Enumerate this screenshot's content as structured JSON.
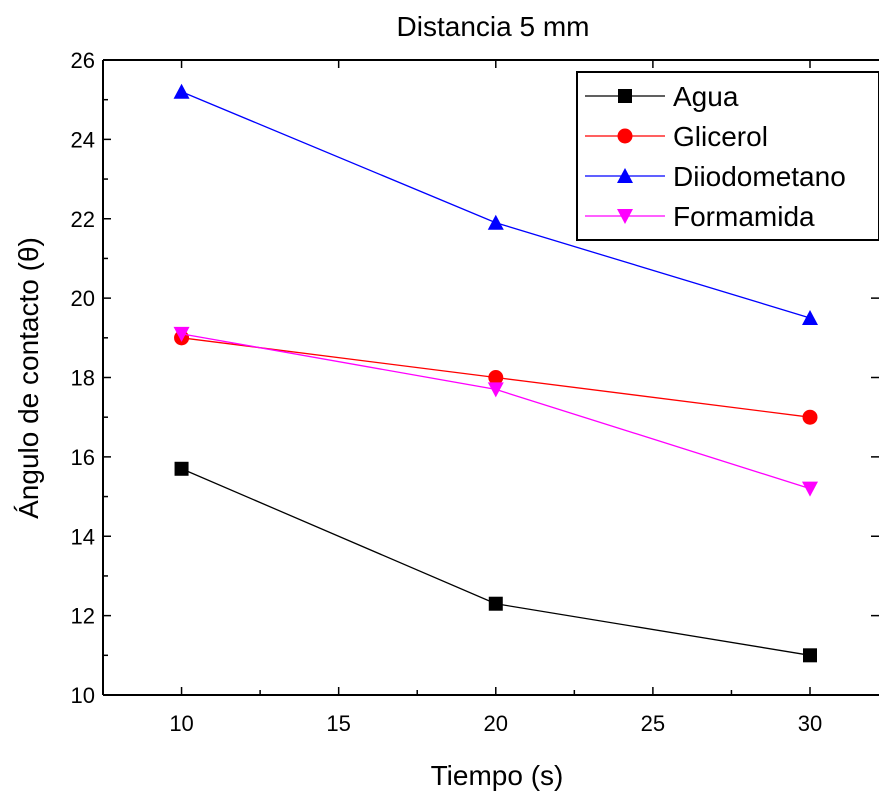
{
  "chart_data": {
    "type": "line",
    "title": "Distancia 5 mm",
    "xlabel": "Tiempo (s)",
    "ylabel": "Ángulo de contacto (θ)",
    "x": [
      10,
      20,
      30
    ],
    "xlim": [
      7.5,
      30
    ],
    "ylim": [
      10,
      26
    ],
    "xticks": [
      10,
      15,
      20,
      25,
      30
    ],
    "yticks": [
      10,
      12,
      14,
      16,
      18,
      20,
      22,
      24,
      26
    ],
    "legend_position": "top-right",
    "grid": false,
    "series": [
      {
        "name": "Agua",
        "values": [
          15.7,
          12.3,
          11.0
        ],
        "color": "#000000",
        "marker": "square"
      },
      {
        "name": "Glicerol",
        "values": [
          19.0,
          18.0,
          17.0
        ],
        "color": "#ff0000",
        "marker": "circle"
      },
      {
        "name": "Diiodometano",
        "values": [
          25.2,
          21.9,
          19.5
        ],
        "color": "#0000ff",
        "marker": "triangle-up"
      },
      {
        "name": "Formamida",
        "values": [
          19.1,
          17.7,
          15.2
        ],
        "color": "#ff00ff",
        "marker": "triangle-down"
      }
    ]
  }
}
